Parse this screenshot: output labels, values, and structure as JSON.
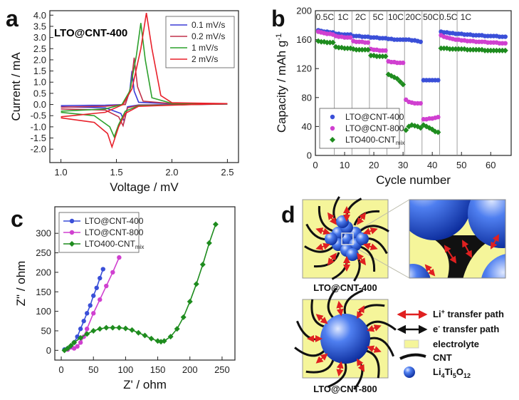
{
  "chart_data": [
    {
      "type": "line",
      "panel": "a",
      "annotation": "LTO@CNT-400",
      "x_label": "Voltage / mV",
      "y_label": "Current / mA",
      "xlim": [
        0.9,
        2.6
      ],
      "ylim": [
        -2.6,
        4.2
      ],
      "xticks": [
        {
          "value": 1.0,
          "label": "1.0"
        },
        {
          "value": 1.5,
          "label": "1.5"
        },
        {
          "value": 2.0,
          "label": "2.0"
        },
        {
          "value": 2.5,
          "label": "2.5"
        }
      ],
      "yticks": [
        {
          "value": -2.0,
          "label": "-2.0"
        },
        {
          "value": -1.5,
          "label": "-1.5"
        },
        {
          "value": -1.0,
          "label": "-1.0"
        },
        {
          "value": -0.5,
          "label": "-0.5"
        },
        {
          "value": 0.0,
          "label": "0.0"
        },
        {
          "value": 0.5,
          "label": "0.5"
        },
        {
          "value": 1.0,
          "label": "1.0"
        },
        {
          "value": 1.5,
          "label": "1.5"
        },
        {
          "value": 2.0,
          "label": "2.0"
        },
        {
          "value": 2.5,
          "label": "2.5"
        },
        {
          "value": 3.0,
          "label": "3.0"
        },
        {
          "value": 3.5,
          "label": "3.5"
        },
        {
          "value": 4.0,
          "label": "4.0"
        }
      ],
      "legend": "upper right",
      "series": [
        {
          "name": "0.1 mV/s",
          "color": "#3a3ad6",
          "x": [
            1.0,
            1.4,
            1.58,
            1.62,
            1.64,
            1.66,
            1.7,
            2.0,
            2.5,
            2.2,
            1.7,
            1.6,
            1.57,
            1.54,
            1.4,
            1.0
          ],
          "values": [
            -0.05,
            -0.03,
            0.0,
            0.6,
            1.5,
            0.6,
            0.1,
            0.03,
            0.02,
            0.0,
            -0.02,
            -0.1,
            -0.75,
            -0.4,
            -0.15,
            -0.1
          ]
        },
        {
          "name": "0.2 mV/s",
          "color": "#c0304a",
          "x": [
            1.0,
            1.4,
            1.58,
            1.63,
            1.66,
            1.69,
            1.74,
            2.0,
            2.5,
            2.2,
            1.7,
            1.6,
            1.56,
            1.52,
            1.4,
            1.0
          ],
          "values": [
            -0.12,
            -0.08,
            0.0,
            0.8,
            2.1,
            0.8,
            0.15,
            0.04,
            0.02,
            0.0,
            -0.03,
            -0.15,
            -0.95,
            -0.55,
            -0.25,
            -0.2
          ]
        },
        {
          "name": "1 mV/s",
          "color": "#2ca02c",
          "x": [
            1.0,
            1.4,
            1.55,
            1.62,
            1.68,
            1.72,
            1.76,
            1.82,
            2.0,
            2.5,
            2.2,
            1.7,
            1.58,
            1.52,
            1.48,
            1.44,
            1.3,
            1.0
          ],
          "values": [
            -0.3,
            -0.2,
            0.0,
            0.6,
            2.2,
            3.65,
            2.0,
            0.3,
            0.05,
            0.03,
            0.0,
            -0.05,
            -0.3,
            -0.9,
            -1.45,
            -1.0,
            -0.5,
            -0.35
          ]
        },
        {
          "name": "2 mV/s",
          "color": "#e8202a",
          "x": [
            1.0,
            1.4,
            1.56,
            1.64,
            1.72,
            1.77,
            1.82,
            1.9,
            2.0,
            2.5,
            2.2,
            1.7,
            1.58,
            1.52,
            1.46,
            1.42,
            1.3,
            1.0
          ],
          "values": [
            -0.55,
            -0.35,
            0.0,
            0.7,
            2.5,
            4.1,
            2.5,
            0.4,
            0.08,
            0.04,
            0.0,
            -0.08,
            -0.4,
            -1.0,
            -1.9,
            -1.3,
            -0.8,
            -0.6
          ]
        }
      ]
    },
    {
      "type": "scatter",
      "panel": "b",
      "x_label": "Cycle number",
      "y_label": "Capacity / mAh g",
      "y_label_sup": "-1",
      "xlim": [
        0,
        67
      ],
      "ylim": [
        0,
        200
      ],
      "xticks": [
        0,
        10,
        20,
        30,
        40,
        50,
        60
      ],
      "yticks": [
        0,
        40,
        80,
        120,
        160,
        200
      ],
      "rate_labels": [
        "0.5C",
        "1C",
        "2C",
        "5C",
        "10C",
        "20C",
        "50C",
        "0.5C",
        "1C"
      ],
      "rate_boundaries": [
        6.5,
        12.5,
        18.5,
        24.5,
        30.5,
        36.5,
        42.5,
        48.5
      ],
      "legend": "lower left",
      "x": [
        1,
        2,
        3,
        4,
        5,
        6,
        7,
        8,
        9,
        10,
        11,
        12,
        13,
        14,
        15,
        16,
        17,
        18,
        19,
        20,
        21,
        22,
        23,
        24,
        25,
        26,
        27,
        28,
        29,
        30,
        31,
        32,
        33,
        34,
        35,
        36,
        37,
        38,
        39,
        40,
        41,
        42,
        43,
        44,
        45,
        46,
        47,
        48,
        49,
        50,
        51,
        52,
        53,
        54,
        55,
        56,
        57,
        58,
        59,
        60,
        61,
        62,
        63,
        64,
        65
      ],
      "series": [
        {
          "name": "LTO@CNT-400",
          "color": "#3a4fd8",
          "marker": "circle",
          "values": [
            173,
            172,
            171,
            171,
            170,
            170,
            168,
            168,
            167,
            167,
            167,
            167,
            165,
            165,
            165,
            164,
            164,
            164,
            163,
            163,
            163,
            162,
            162,
            162,
            161,
            161,
            160,
            160,
            160,
            160,
            160,
            160,
            159,
            159,
            158,
            157,
            104,
            104,
            104,
            104,
            104,
            104,
            171,
            170,
            170,
            169,
            169,
            168,
            168,
            168,
            167,
            167,
            167,
            166,
            166,
            166,
            166,
            165,
            165,
            165,
            165,
            165,
            164,
            164,
            164
          ]
        },
        {
          "name": "LTO@CNT-800",
          "color": "#d040d0",
          "marker": "circle",
          "values": [
            171,
            170,
            169,
            168,
            168,
            167,
            165,
            164,
            164,
            163,
            163,
            163,
            158,
            157,
            157,
            157,
            156,
            156,
            147,
            146,
            146,
            145,
            145,
            145,
            130,
            129,
            129,
            128,
            128,
            128,
            77,
            74,
            73,
            72,
            72,
            72,
            50,
            50,
            51,
            51,
            52,
            53,
            166,
            164,
            163,
            162,
            161,
            160,
            160,
            159,
            159,
            158,
            158,
            158,
            157,
            157,
            157,
            157,
            156,
            156,
            156,
            156,
            155,
            155,
            155
          ]
        },
        {
          "name": "LTO400-CNT",
          "name_sub": "mix",
          "color": "#1e8c1e",
          "marker": "diamond",
          "values": [
            158,
            157,
            157,
            156,
            156,
            156,
            150,
            149,
            149,
            148,
            148,
            148,
            147,
            146,
            146,
            146,
            146,
            146,
            138,
            138,
            137,
            137,
            137,
            137,
            112,
            110,
            108,
            106,
            102,
            98,
            35,
            40,
            42,
            41,
            40,
            38,
            42,
            40,
            38,
            36,
            33,
            32,
            148,
            148,
            148,
            147,
            147,
            147,
            147,
            147,
            147,
            146,
            146,
            146,
            146,
            146,
            146,
            145,
            145,
            145,
            145,
            145,
            145,
            145,
            145
          ]
        }
      ]
    },
    {
      "type": "line",
      "panel": "c",
      "markers": true,
      "x_label": "Z' / ohm",
      "y_label": "Z\" / ohm",
      "xlim": [
        -10,
        270
      ],
      "ylim": [
        -25,
        368
      ],
      "xticks": [
        0,
        50,
        100,
        150,
        200,
        250
      ],
      "yticks": [
        0,
        50,
        100,
        150,
        200,
        250,
        300
      ],
      "legend": "upper left",
      "series": [
        {
          "name": "LTO@CNT-400",
          "color": "#3a4fd8",
          "marker": "circle",
          "x": [
            5,
            10,
            15,
            20,
            25,
            30,
            35,
            40,
            45,
            50,
            55,
            60,
            65
          ],
          "values": [
            2,
            5,
            10,
            20,
            35,
            55,
            75,
            95,
            115,
            140,
            160,
            185,
            208
          ]
        },
        {
          "name": "LTO@CNT-800",
          "color": "#d040d0",
          "marker": "circle",
          "x": [
            10,
            20,
            25,
            30,
            35,
            40,
            50,
            60,
            70,
            80,
            90
          ],
          "values": [
            2,
            5,
            10,
            20,
            35,
            55,
            95,
            130,
            165,
            200,
            238
          ]
        },
        {
          "name": "LTO400-CNT",
          "name_sub": "mix",
          "color": "#1e8c1e",
          "marker": "diamond",
          "x": [
            5,
            10,
            15,
            20,
            30,
            40,
            50,
            60,
            70,
            80,
            90,
            100,
            110,
            120,
            130,
            140,
            150,
            155,
            160,
            170,
            180,
            190,
            200,
            210,
            220,
            230,
            240
          ],
          "values": [
            0,
            5,
            12,
            20,
            32,
            42,
            50,
            55,
            58,
            58,
            58,
            56,
            52,
            45,
            38,
            30,
            24,
            22,
            24,
            35,
            55,
            85,
            125,
            170,
            220,
            275,
            323
          ]
        }
      ]
    }
  ],
  "diagram": {
    "panel": "d",
    "top_label": "LTO@CNT-400",
    "bottom_label": "LTO@CNT-800",
    "legend": {
      "li": [
        "Li",
        "+",
        " transfer path"
      ],
      "e": [
        "e",
        "-",
        " transfer path"
      ],
      "electrolyte": "electrolyte",
      "cnt": "CNT",
      "lto": [
        "Li",
        "4",
        "Ti",
        "5",
        "O",
        "12"
      ]
    }
  }
}
